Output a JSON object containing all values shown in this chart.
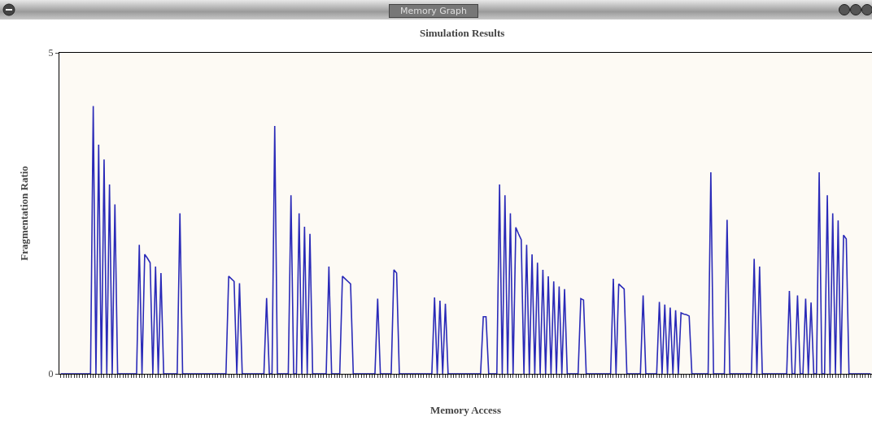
{
  "chart_data": {
    "type": "line",
    "title": "Simulation Results",
    "xlabel": "Memory Access",
    "ylabel": "Fragmentation Ratio",
    "annotations": [
      "Memory Graph"
    ],
    "categories": [
      null,
      null,
      null,
      null,
      null,
      null,
      null,
      null,
      null,
      null,
      null,
      null,
      null,
      null,
      null,
      null,
      null,
      null,
      null,
      null,
      null,
      null,
      null,
      null,
      null,
      null,
      null,
      null,
      null,
      null,
      null,
      null,
      null,
      null,
      null,
      null,
      null,
      null,
      null,
      null,
      null,
      null,
      null,
      null,
      null,
      null,
      null,
      null,
      null,
      null,
      null,
      null,
      null,
      null,
      null,
      null,
      null,
      null,
      null,
      null,
      null,
      null,
      null,
      null,
      null,
      null,
      null,
      null,
      null,
      null,
      null,
      null,
      null,
      null,
      null,
      null,
      null,
      null,
      null,
      null,
      null,
      null,
      null,
      null,
      null,
      null,
      null,
      null,
      null,
      null,
      null,
      null,
      null,
      null,
      null,
      null,
      null,
      null,
      null,
      null,
      null,
      null,
      null,
      null,
      null,
      null,
      null,
      null,
      null,
      null,
      null,
      null,
      null,
      null,
      null,
      null,
      null,
      null,
      null,
      null,
      null,
      null,
      null,
      null,
      null,
      null,
      null,
      null,
      null,
      null,
      null,
      null,
      null,
      null,
      null,
      null,
      null,
      null,
      null,
      null,
      null,
      null,
      null,
      null,
      null,
      null,
      null,
      null,
      null,
      null,
      null,
      null,
      null,
      null,
      null,
      null,
      null,
      null,
      null,
      null,
      null,
      null,
      null,
      null,
      null,
      null,
      null,
      null,
      null,
      null,
      null,
      null,
      null,
      null,
      null,
      null,
      null,
      null,
      null,
      null,
      null,
      null,
      null,
      null,
      null,
      null,
      null,
      null,
      null,
      null,
      null,
      null,
      null,
      null,
      null,
      null,
      null,
      null,
      null,
      null,
      null,
      null,
      null,
      null,
      null,
      null,
      null,
      null,
      null,
      null,
      null,
      null,
      null,
      null,
      null,
      null,
      null,
      null,
      null,
      null,
      null,
      null,
      null,
      null,
      null,
      null,
      null,
      null,
      null,
      null,
      null,
      null,
      null,
      null,
      null,
      null,
      null,
      null,
      null,
      null,
      null,
      null,
      null,
      null,
      null,
      null,
      null,
      null,
      null,
      null,
      null,
      null,
      null,
      null,
      null,
      null,
      null,
      null,
      null,
      null,
      null,
      null,
      null,
      null,
      null,
      null,
      null,
      null,
      null,
      null,
      null,
      null,
      null,
      null,
      null,
      null,
      null,
      null,
      null,
      null,
      null,
      null,
      null,
      null,
      null,
      null,
      null,
      null,
      null,
      null,
      null,
      null,
      null,
      null,
      null,
      null,
      null,
      null,
      null,
      null
    ],
    "values": [
      0,
      0,
      0,
      0,
      0,
      0,
      0,
      0,
      0,
      0,
      0,
      0,
      4.17,
      0,
      3.57,
      0,
      3.34,
      0,
      2.95,
      0,
      2.64,
      0,
      0,
      0,
      0,
      0,
      0,
      0,
      0,
      2.01,
      0,
      1.86,
      1.8,
      1.73,
      0,
      1.67,
      0,
      1.57,
      0,
      0,
      0,
      0,
      0,
      0,
      2.5,
      0,
      0,
      0,
      0,
      0,
      0,
      0,
      0,
      0,
      0,
      0,
      0,
      0,
      0,
      0,
      0,
      0,
      1.52,
      1.48,
      1.44,
      0,
      1.41,
      0,
      0,
      0,
      0,
      0,
      0,
      0,
      0,
      0,
      1.18,
      0,
      0,
      3.86,
      0,
      0,
      0,
      0,
      0,
      2.78,
      0,
      0,
      2.5,
      0,
      2.29,
      0,
      2.18,
      0,
      0,
      0,
      0,
      0,
      0,
      1.67,
      0,
      0,
      0,
      0,
      1.52,
      1.48,
      1.44,
      1.4,
      0,
      0,
      0,
      0,
      0,
      0,
      0,
      0,
      0,
      1.17,
      0,
      0,
      0,
      0,
      0,
      1.62,
      1.57,
      0,
      0,
      0,
      0,
      0,
      0,
      0,
      0,
      0,
      0,
      0,
      0,
      0,
      1.19,
      0,
      1.14,
      0,
      1.09,
      0,
      0,
      0,
      0,
      0,
      0,
      0,
      0,
      0,
      0,
      0,
      0,
      0,
      0.89,
      0.89,
      0,
      0,
      0,
      0,
      2.95,
      0,
      2.78,
      0,
      2.5,
      0,
      2.28,
      2.18,
      2.09,
      0,
      2.01,
      0,
      1.86,
      0,
      1.73,
      0,
      1.62,
      0,
      1.52,
      0,
      1.44,
      0,
      1.36,
      0,
      1.32,
      0,
      0,
      0,
      0,
      0,
      1.17,
      1.15,
      0,
      0,
      0,
      0,
      0,
      0,
      0,
      0,
      0,
      0,
      1.48,
      0,
      1.4,
      1.36,
      1.32,
      0,
      0,
      0,
      0,
      0,
      0,
      1.22,
      0,
      0,
      0,
      0,
      0,
      1.12,
      0,
      1.08,
      0,
      1.03,
      0,
      0.99,
      0,
      0.95,
      0.93,
      0.92,
      0.9,
      0,
      0,
      0,
      0,
      0,
      0,
      0,
      3.14,
      0,
      0,
      0,
      0,
      0,
      2.4,
      0,
      0,
      0,
      0,
      0,
      0,
      0,
      0,
      0,
      1.79,
      0,
      1.67,
      0,
      0,
      0,
      0,
      0,
      0,
      0,
      0,
      0,
      0,
      1.29,
      0,
      0,
      1.22,
      0,
      0,
      1.17,
      0,
      1.11,
      0,
      0,
      3.14,
      0,
      0,
      2.78,
      0,
      2.5,
      0,
      2.39,
      0,
      2.16,
      2.1,
      0,
      0,
      0,
      0,
      0,
      0,
      0,
      0,
      0
    ],
    "color": "#2a2ab8",
    "ylim": [
      0,
      5
    ],
    "yticks": [
      0,
      5
    ],
    "tick_labels": "y"
  }
}
